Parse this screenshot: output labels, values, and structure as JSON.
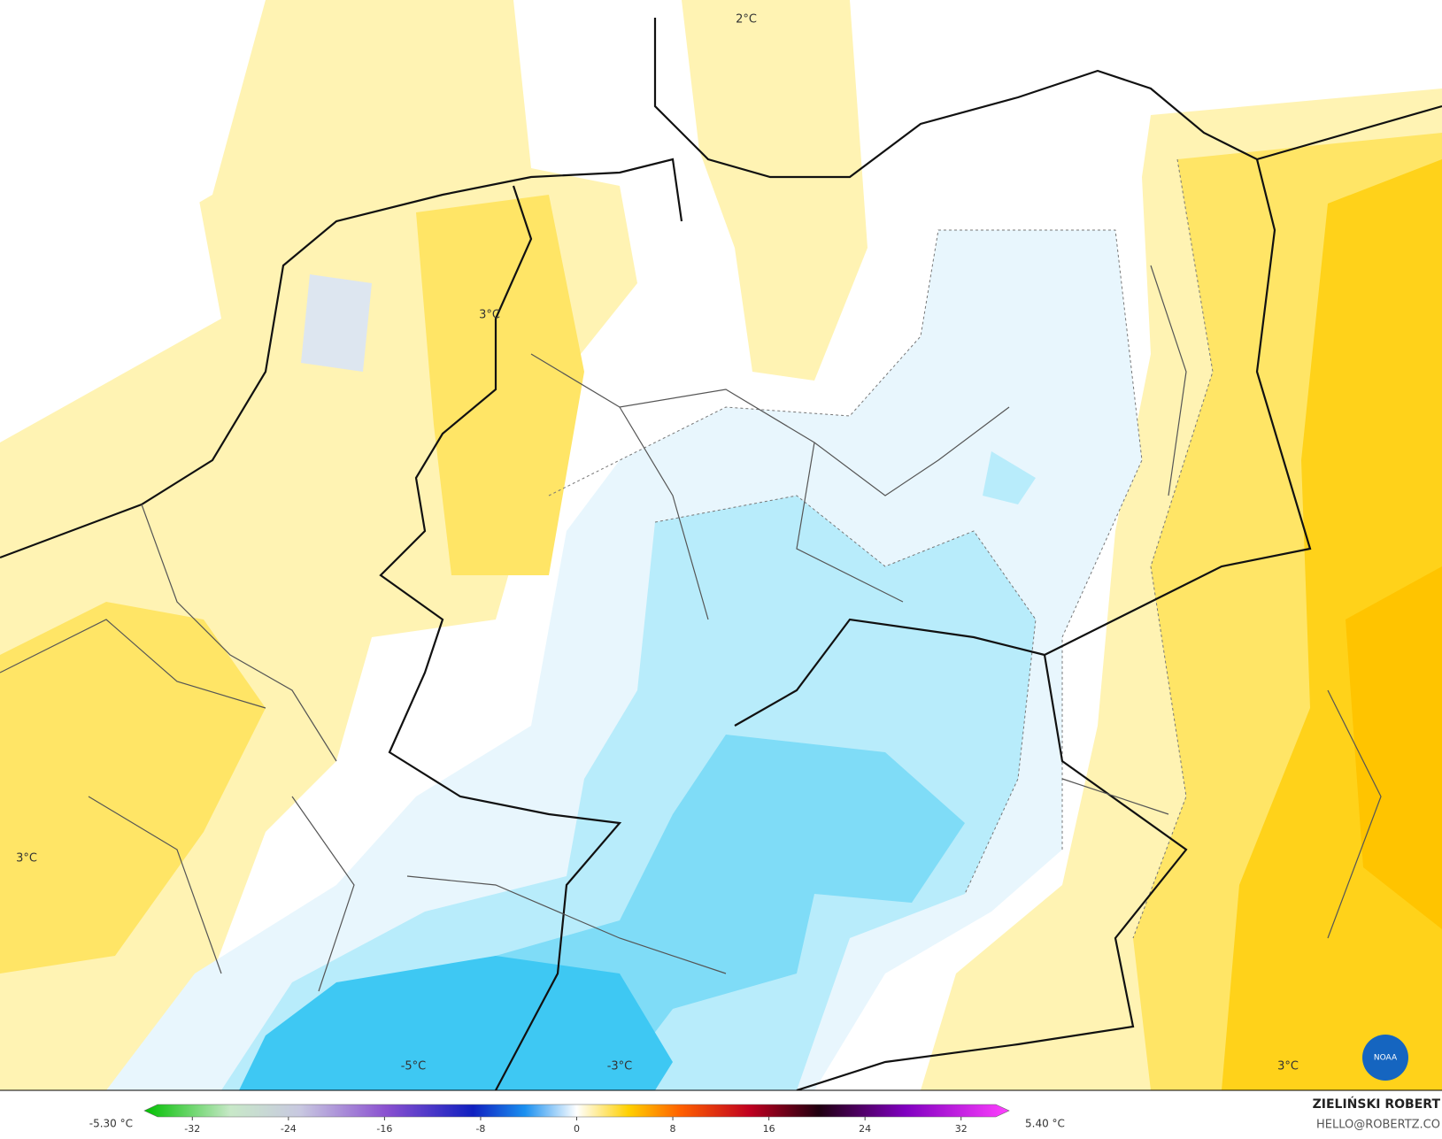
{
  "map": {
    "contour_labels": [
      "2°C",
      "3°C",
      "3°C",
      "-5°C",
      "-3°C",
      "3°C"
    ],
    "colorbar": {
      "min_label": "-5.30 °C",
      "max_label": "5.40 °C",
      "lim": [
        -36,
        36
      ],
      "ticks": [
        -32,
        -24,
        -16,
        -8,
        0,
        8,
        16,
        24,
        32
      ]
    },
    "credit": {
      "name": "ZIELIŃSKI ROBERT",
      "contact": "HELLO@ROBERTZ.CO",
      "logo": "NOAA"
    }
  }
}
